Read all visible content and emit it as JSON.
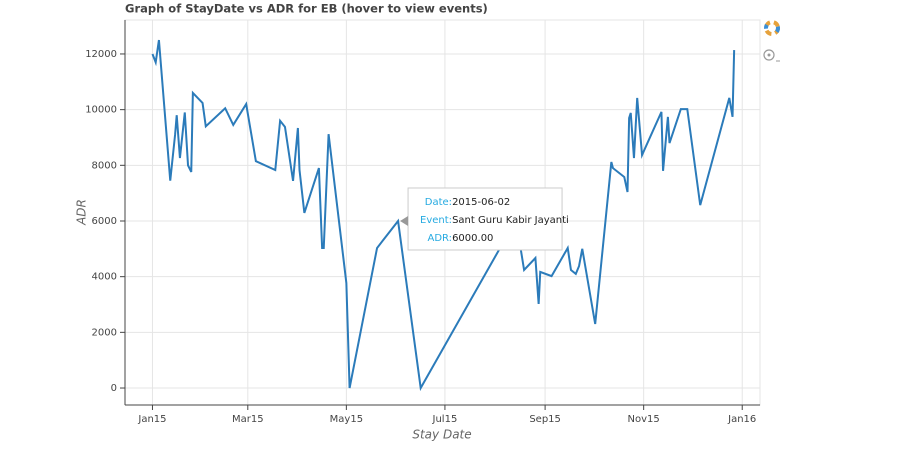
{
  "chart_data": {
    "type": "line",
    "title": "Graph of StayDate vs ADR for EB (hover to view events)",
    "x_label": "Stay Date",
    "y_label": "ADR",
    "x": [
      "2015-01-01",
      "2015-01-03",
      "2015-01-05",
      "2015-01-12",
      "2015-01-15",
      "2015-01-16",
      "2015-01-18",
      "2015-01-21",
      "2015-01-23",
      "2015-01-25",
      "2015-01-26",
      "2015-02-01",
      "2015-02-03",
      "2015-02-15",
      "2015-02-20",
      "2015-02-28",
      "2015-03-06",
      "2015-03-18",
      "2015-03-21",
      "2015-03-24",
      "2015-03-29",
      "2015-04-01",
      "2015-04-02",
      "2015-04-05",
      "2015-04-14",
      "2015-04-16",
      "2015-04-17",
      "2015-04-20",
      "2015-05-01",
      "2015-05-03",
      "2015-05-20",
      "2015-06-02",
      "2015-06-16",
      "2015-08-14",
      "2015-08-19",
      "2015-08-26",
      "2015-08-28",
      "2015-08-29",
      "2015-09-05",
      "2015-09-15",
      "2015-09-17",
      "2015-09-20",
      "2015-09-22",
      "2015-09-24",
      "2015-10-02",
      "2015-10-12",
      "2015-10-13",
      "2015-10-20",
      "2015-10-22",
      "2015-10-23",
      "2015-10-24",
      "2015-10-26",
      "2015-10-28",
      "2015-10-31",
      "2015-11-12",
      "2015-11-13",
      "2015-11-16",
      "2015-11-17",
      "2015-11-24",
      "2015-11-28",
      "2015-12-06",
      "2015-12-24",
      "2015-12-26",
      "2015-12-27"
    ],
    "series": [
      {
        "name": "ADR",
        "color": "#2b7bba",
        "values": [
          12000,
          11700,
          12500,
          7450,
          9100,
          9800,
          8260,
          9900,
          8000,
          7760,
          10600,
          10240,
          9400,
          10050,
          9450,
          10200,
          8150,
          7830,
          9600,
          9380,
          7440,
          9340,
          7830,
          6290,
          7900,
          5030,
          5030,
          9120,
          3770,
          0,
          5030,
          6000,
          0,
          6040,
          4240,
          4670,
          3020,
          4170,
          4020,
          5030,
          4240,
          4100,
          4380,
          5000,
          2300,
          8120,
          7900,
          7580,
          7040,
          9700,
          9880,
          8260,
          10420,
          8370,
          9920,
          7800,
          9740,
          8800,
          10020,
          10020,
          6570,
          10420,
          9740,
          12140
        ]
      }
    ],
    "xlim": [
      "2014-12-15",
      "2016-01-12"
    ],
    "xticks": [
      {
        "value": "2015-01-01",
        "label": "Jan15"
      },
      {
        "value": "2015-03-01",
        "label": "Mar15"
      },
      {
        "value": "2015-05-01",
        "label": "May15"
      },
      {
        "value": "2015-07-01",
        "label": "Jul15"
      },
      {
        "value": "2015-09-01",
        "label": "Sep15"
      },
      {
        "value": "2015-11-01",
        "label": "Nov15"
      },
      {
        "value": "2016-01-01",
        "label": "Jan16"
      }
    ],
    "ylim": [
      -610,
      13220
    ],
    "yticks": [
      0,
      2000,
      4000,
      6000,
      8000,
      10000,
      12000
    ],
    "grid": true,
    "tooltip": {
      "point_index": 31,
      "rows": [
        {
          "label": "Date:",
          "value": "2015-06-02"
        },
        {
          "label": "Event:",
          "value": "Sant Guru Kabir Jayanti"
        },
        {
          "label": "ADR:",
          "value": "6000.00"
        }
      ]
    }
  }
}
